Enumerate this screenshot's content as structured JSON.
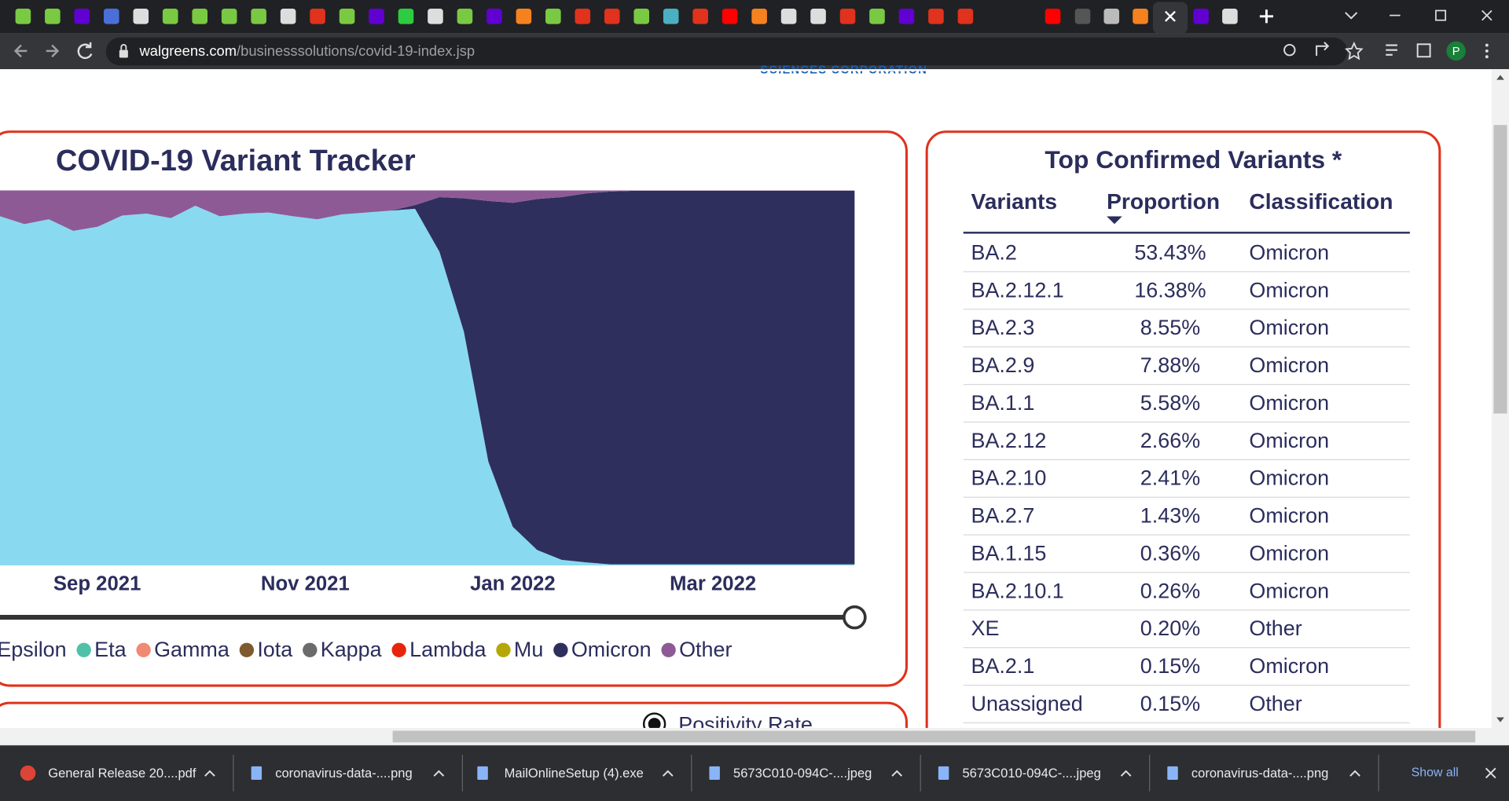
{
  "browser": {
    "url_domain": "walgreens.com",
    "url_path": "/businesssolutions/covid-19-index.jsp",
    "profile": "P"
  },
  "header": {
    "logo_text": "SCIENCES CORPORATION"
  },
  "chart_data": {
    "type": "area",
    "title": "COVID-19 Variant Tracker",
    "stacked": true,
    "categories": [
      null,
      null,
      null,
      null,
      null,
      null,
      null,
      null,
      null,
      null,
      null,
      null,
      null,
      null,
      null,
      null,
      null,
      null,
      null,
      null,
      null,
      null,
      null,
      null,
      null,
      null,
      null,
      null,
      null,
      null,
      null,
      null,
      null,
      null,
      null,
      null
    ],
    "xlim": [
      0,
      35
    ],
    "xticks": [
      {
        "value": 3.98,
        "label": "Sep 2021"
      },
      {
        "value": 12.5,
        "label": "Nov 2021"
      },
      {
        "value": 21.0,
        "label": "Jan 2022"
      },
      {
        "value": 29.2,
        "label": "Mar 2022"
      }
    ],
    "ylim": [
      0,
      100
    ],
    "series": [
      {
        "color": "#89daf0",
        "values": [
          93.1,
          91.0,
          92.3,
          89.2,
          90.3,
          93.3,
          93.8,
          92.6,
          95.9,
          93.1,
          93.8,
          94.1,
          93.1,
          92.3,
          93.6,
          94.1,
          94.6,
          95.1,
          83.6,
          62.3,
          27.7,
          10.3,
          4.1,
          1.5,
          0.8,
          0.3,
          0.3,
          0.3,
          0.3,
          0.3,
          0.3,
          0.3,
          0.3,
          0.3,
          0.3,
          0.3
        ]
      },
      {
        "name": "Omicron",
        "color": "#2f2f5e",
        "values": [
          0,
          0,
          0,
          0,
          0,
          0,
          0,
          0,
          0,
          0,
          0,
          0,
          0,
          0,
          0,
          0,
          0,
          1,
          14.6,
          35.6,
          69.5,
          86.4,
          93.6,
          96.7,
          98.4,
          99.4,
          99.6,
          99.6,
          99.6,
          99.6,
          99.6,
          99.6,
          99.6,
          99.6,
          99.6,
          99.6
        ]
      },
      {
        "name": "Other",
        "color": "#8e5a96",
        "values": [
          6.9,
          9.0,
          7.7,
          10.8,
          9.7,
          6.7,
          6.2,
          7.4,
          4.1,
          6.9,
          6.2,
          5.9,
          6.9,
          7.7,
          6.4,
          5.9,
          5.4,
          3.9,
          1.8,
          2.1,
          2.8,
          3.3,
          2.3,
          1.8,
          0.8,
          0.3,
          0.1,
          0.1,
          0.1,
          0.1,
          0.1,
          0.1,
          0.1,
          0.1,
          0.1,
          0.1
        ]
      }
    ],
    "legend": [
      {
        "name": "Epsilon"
      },
      {
        "name": "Eta",
        "color": "#4fc1a9"
      },
      {
        "name": "Gamma",
        "color": "#f08a74"
      },
      {
        "name": "Iota",
        "color": "#7f5a2e"
      },
      {
        "name": "Kappa",
        "color": "#6b6b6b"
      },
      {
        "name": "Lambda",
        "color": "#e8250c"
      },
      {
        "name": "Mu",
        "color": "#b5a70a"
      },
      {
        "name": "Omicron",
        "color": "#2f2f5e"
      },
      {
        "name": "Other",
        "color": "#8e5a96"
      }
    ]
  },
  "table": {
    "title": "Top Confirmed Variants *",
    "columns": [
      "Variants",
      "Proportion",
      "Classification"
    ],
    "rows": [
      [
        "BA.2",
        "53.43%",
        "Omicron"
      ],
      [
        "BA.2.12.1",
        "16.38%",
        "Omicron"
      ],
      [
        "BA.2.3",
        "8.55%",
        "Omicron"
      ],
      [
        "BA.2.9",
        "7.88%",
        "Omicron"
      ],
      [
        "BA.1.1",
        "5.58%",
        "Omicron"
      ],
      [
        "BA.2.12",
        "2.66%",
        "Omicron"
      ],
      [
        "BA.2.10",
        "2.41%",
        "Omicron"
      ],
      [
        "BA.2.7",
        "1.43%",
        "Omicron"
      ],
      [
        "BA.1.15",
        "0.36%",
        "Omicron"
      ],
      [
        "BA.2.10.1",
        "0.26%",
        "Omicron"
      ],
      [
        "XE",
        "0.20%",
        "Other"
      ],
      [
        "BA.2.1",
        "0.15%",
        "Omicron"
      ],
      [
        "Unassigned",
        "0.15%",
        "Other"
      ]
    ]
  },
  "next_card": {
    "radio_label": "Positivity Rate"
  },
  "downloads": {
    "items": [
      "General Release 20....pdf",
      "coronavirus-data-....png",
      "MailOnlineSetup (4).exe",
      "5673C010-094C-....jpeg",
      "5673C010-094C-....jpeg",
      "coronavirus-data-....png"
    ],
    "show_all": "Show all"
  }
}
